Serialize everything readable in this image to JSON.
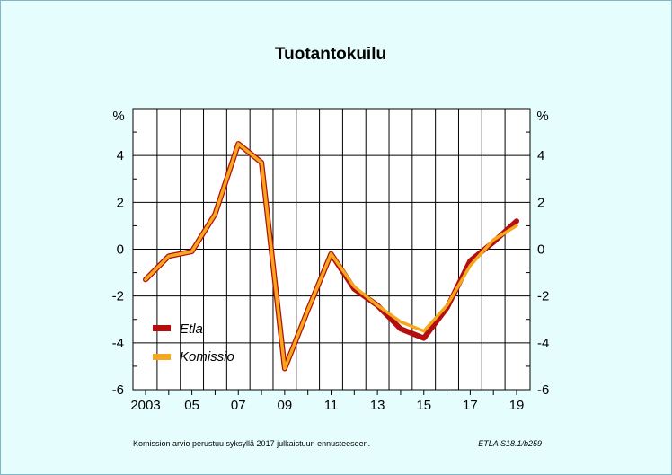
{
  "chart_data": {
    "type": "line",
    "title": "Tuotantokuilu",
    "y_unit_left": "%",
    "y_unit_right": "%",
    "ylim": [
      -6,
      6
    ],
    "y_ticks": [
      4,
      2,
      0,
      -2,
      -4,
      -6
    ],
    "y_tick_labels": [
      "4",
      "2",
      "0",
      "-2",
      "-4",
      "-6"
    ],
    "xlim": [
      2003,
      2019
    ],
    "x_tick_years": [
      2003,
      2005,
      2007,
      2009,
      2011,
      2013,
      2015,
      2017,
      2019
    ],
    "x_tick_labels": [
      "2003",
      "05",
      "07",
      "09",
      "11",
      "13",
      "15",
      "17",
      "19"
    ],
    "grid": true,
    "legend_position": "lower-left",
    "series": [
      {
        "name": "Etla",
        "color": "#b30f0f",
        "x": [
          2003,
          2004,
          2005,
          2006,
          2007,
          2008,
          2009,
          2010,
          2011,
          2012,
          2013,
          2014,
          2015,
          2016,
          2017,
          2018,
          2019
        ],
        "values": [
          -1.3,
          -0.3,
          -0.1,
          1.5,
          4.5,
          3.7,
          -5.1,
          -2.6,
          -0.2,
          -1.7,
          -2.4,
          -3.4,
          -3.8,
          -2.5,
          -0.5,
          0.3,
          1.2
        ]
      },
      {
        "name": "Komissio",
        "color": "#f5a81c",
        "x": [
          2003,
          2004,
          2005,
          2006,
          2007,
          2008,
          2009,
          2010,
          2011,
          2012,
          2013,
          2014,
          2015,
          2016,
          2017,
          2018,
          2019
        ],
        "values": [
          -1.3,
          -0.3,
          -0.1,
          1.5,
          4.5,
          3.7,
          -5.1,
          -2.6,
          -0.2,
          -1.6,
          -2.4,
          -3.1,
          -3.5,
          -2.4,
          -0.7,
          0.4,
          1.0
        ]
      }
    ],
    "footnote": "Komission arvio perustuu syksyllä 2017 julkaistuun ennusteeseen.",
    "source": "ETLA S18.1/b259"
  }
}
